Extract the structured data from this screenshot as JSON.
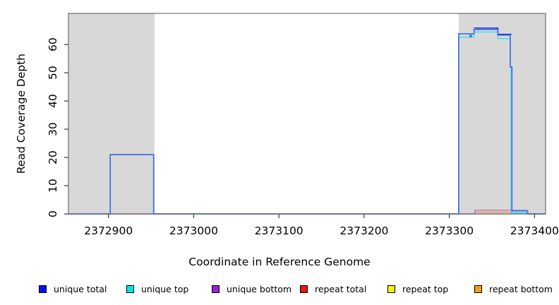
{
  "chart_data": {
    "type": "line",
    "subtype": "step-coverage",
    "title": "",
    "xlabel": "Coordinate in Reference Genome",
    "ylabel": "Read Coverage Depth",
    "xlim": [
      2372853,
      2373413
    ],
    "ylim": [
      0,
      71
    ],
    "x_ticks": [
      2372900,
      2373000,
      2373100,
      2373200,
      2373300,
      2373400
    ],
    "y_ticks": [
      0,
      10,
      20,
      30,
      40,
      50,
      60
    ],
    "grid": false,
    "box_color": "#6e6e6e",
    "tick_color": "#333333",
    "shaded_regions": [
      {
        "name": "repeat-region-left",
        "from": 2372853,
        "to": 2372954,
        "color": "#d8d8d8"
      },
      {
        "name": "repeat-region-right",
        "from": 2373311,
        "to": 2373413,
        "color": "#d8d8d8"
      }
    ],
    "series": [
      {
        "name": "baseline-all-series-zero",
        "color": "#8d7de8",
        "width": 1.6,
        "segments": [
          [
            [
              2372853,
              0
            ],
            [
              2373413,
              0
            ]
          ]
        ]
      },
      {
        "name": "repeat total",
        "color": "#ee3344",
        "width": 1.3,
        "segments": [
          [
            [
              2372902,
              0
            ],
            [
              2372952,
              0
            ]
          ],
          [
            [
              2373311,
              0
            ],
            [
              2373330,
              0
            ]
          ]
        ]
      },
      {
        "name": "repeat bottom",
        "color": "#ff9d1e",
        "width": 1.5,
        "segments": [
          [
            [
              2373330,
              0
            ],
            [
              2373330,
              0.65
            ],
            [
              2373373,
              0.65
            ],
            [
              2373373,
              0
            ]
          ]
        ]
      },
      {
        "name": "repeat top + unique top overlap",
        "color": "#93d57e",
        "width": 1.3,
        "segments": [
          [
            [
              2373373,
              0.45
            ],
            [
              2373392,
              0.45
            ]
          ]
        ]
      },
      {
        "name": "unique bottom",
        "color": "#b06ae0",
        "width": 1.3,
        "segments": [
          [
            [
              2373330,
              0
            ],
            [
              2373330,
              1.35
            ],
            [
              2373373,
              1.35
            ],
            [
              2373373,
              0
            ]
          ]
        ]
      },
      {
        "name": "unique top",
        "color": "#2ee2ec",
        "width": 1.3,
        "segments": [
          [
            [
              2373311,
              0
            ],
            [
              2373311,
              62.6
            ],
            [
              2373329,
              62.6
            ],
            [
              2373329,
              64.4
            ],
            [
              2373357,
              64.4
            ],
            [
              2373357,
              62.1
            ],
            [
              2373371.5,
              62.1
            ],
            [
              2373371.5,
              52
            ],
            [
              2373372.5,
              52
            ],
            [
              2373372.5,
              0.45
            ],
            [
              2373392,
              0.45
            ],
            [
              2373392,
              0
            ]
          ]
        ]
      },
      {
        "name": "unique total (dark cap)",
        "color": "#1d1dd0",
        "width": 1.5,
        "segments": [
          [
            [
              2373329,
              65.8
            ],
            [
              2373357,
              65.8
            ],
            [
              2373357,
              63.6
            ],
            [
              2373373,
              63.6
            ]
          ],
          [
            [
              2373373.5,
              1.15
            ],
            [
              2373392,
              1.15
            ]
          ]
        ]
      },
      {
        "name": "unique total",
        "color": "#3e6ee8",
        "width": 1.7,
        "segments": [
          [
            [
              2372853,
              0
            ],
            [
              2372902,
              0
            ],
            [
              2372902,
              21
            ],
            [
              2372953,
              21
            ],
            [
              2372953,
              0
            ],
            [
              2373311,
              0
            ],
            [
              2373311,
              63.8
            ],
            [
              2373324,
              63.8
            ],
            [
              2373324,
              62.8
            ],
            [
              2373326,
              62.8
            ],
            [
              2373326,
              63.8
            ],
            [
              2373329,
              63.8
            ],
            [
              2373329,
              65.3
            ],
            [
              2373357,
              65.3
            ],
            [
              2373357,
              63.3
            ],
            [
              2373371.5,
              63.3
            ],
            [
              2373371.5,
              52
            ],
            [
              2373373.5,
              52
            ],
            [
              2373373.5,
              1.1
            ],
            [
              2373392,
              1.1
            ],
            [
              2373392,
              0
            ],
            [
              2373413,
              0
            ]
          ]
        ]
      }
    ],
    "legend": [
      {
        "label": "unique total",
        "color": "#0f0fee"
      },
      {
        "label": "unique top",
        "color": "#00e6e6"
      },
      {
        "label": "unique bottom",
        "color": "#9b1fd8"
      },
      {
        "label": "repeat total",
        "color": "#ec1515"
      },
      {
        "label": "repeat top",
        "color": "#f5f213"
      },
      {
        "label": "repeat bottom",
        "color": "#f1a11c"
      }
    ],
    "legend_position": "bottom"
  }
}
